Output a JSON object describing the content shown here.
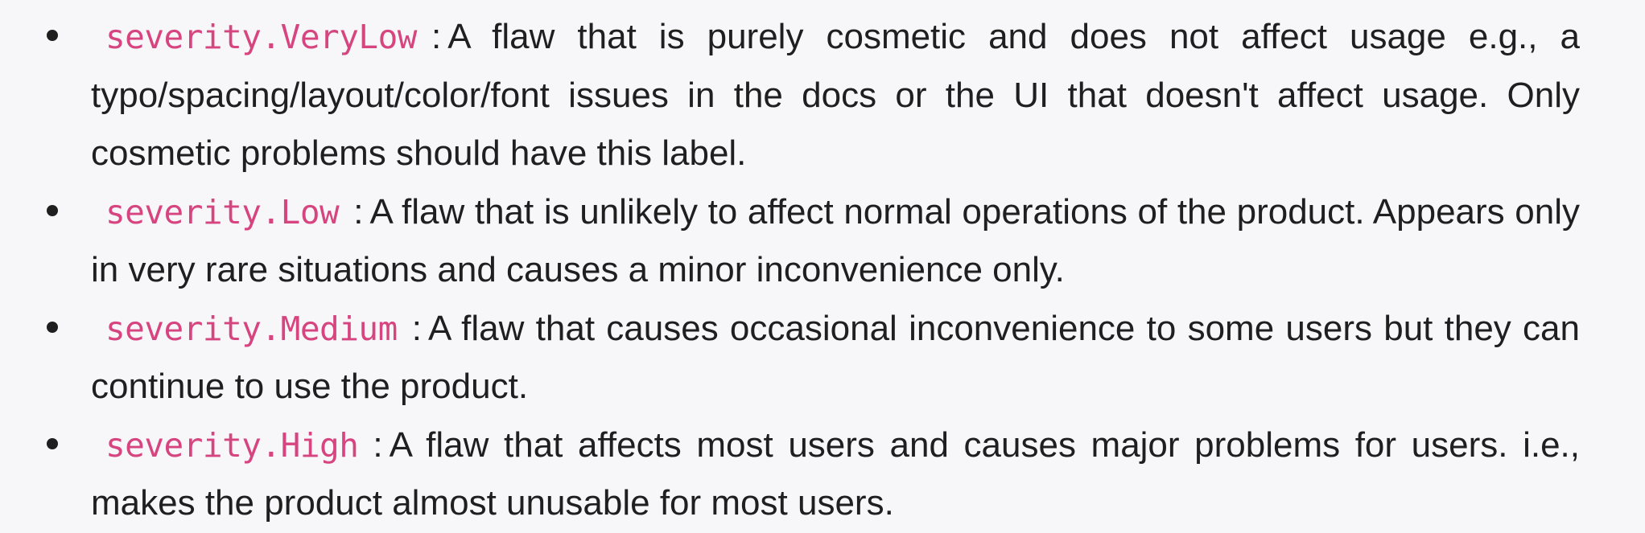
{
  "severity_levels": [
    {
      "label": "severity.VeryLow",
      "separator": ":",
      "description": "A flaw that is purely cosmetic and does not affect usage e.g., a typo/spacing/layout/color/font issues in the docs or the UI that doesn't affect usage. Only cosmetic problems should have this label."
    },
    {
      "label": "severity.Low",
      "separator": ":",
      "description": "A flaw that is unlikely to affect normal operations of the product. Appears only in very rare situations and causes a minor inconvenience only."
    },
    {
      "label": "severity.Medium",
      "separator": ":",
      "description": "A flaw that causes occasional inconvenience to some users but they can continue to use the product."
    },
    {
      "label": "severity.High",
      "separator": ":",
      "description": "A flaw that affects most users and causes major problems for users. i.e., makes the product almost unusable for most users."
    }
  ],
  "colors": {
    "background": "#f7f7f9",
    "text": "#1f1f1f",
    "code_label": "#d6457f"
  }
}
